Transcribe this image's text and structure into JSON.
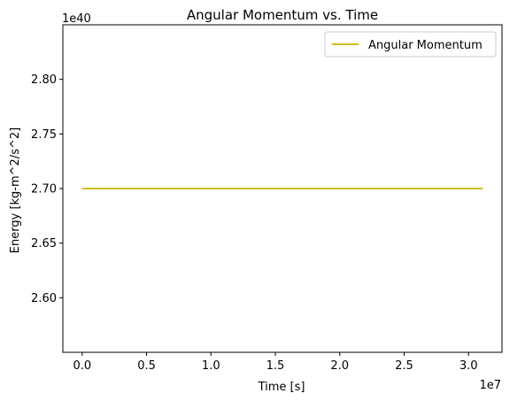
{
  "chart_data": {
    "type": "line",
    "title": "Angular Momentum vs. Time",
    "xlabel": "Time [s]",
    "ylabel": "Energy [kg-m^2/s^2]",
    "x_offset_label": "1e7",
    "y_offset_label": "1e40",
    "x_scale": 10000000,
    "y_scale": 1e+40,
    "xlim": [
      -1500000,
      32600000
    ],
    "ylim": [
      2.55e+40,
      2.85e+40
    ],
    "x_ticks": [
      0,
      5000000,
      10000000,
      15000000,
      20000000,
      25000000,
      30000000
    ],
    "x_tick_labels": [
      "0.0",
      "0.5",
      "1.0",
      "1.5",
      "2.0",
      "2.5",
      "3.0"
    ],
    "y_ticks": [
      2.6e+40,
      2.65e+40,
      2.7e+40,
      2.75e+40,
      2.8e+40
    ],
    "y_tick_labels": [
      "2.60",
      "2.65",
      "2.70",
      "2.75",
      "2.80"
    ],
    "grid": false,
    "legend_position": "top-right",
    "series": [
      {
        "name": "Angular Momentum",
        "color": "#c8b400",
        "x": [
          0,
          31100000
        ],
        "y": [
          2.7e+40,
          2.7e+40
        ]
      }
    ]
  }
}
